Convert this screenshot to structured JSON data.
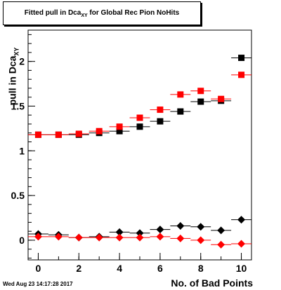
{
  "title": {
    "main": "Fitted pull in Dca",
    "sub": "XY",
    "rest": " for Global Rec Pion NoHits"
  },
  "ylabel": {
    "main": "pull in Dca",
    "sub": "XY"
  },
  "timestamp": "Wed Aug 23 14:17:28 2017",
  "chart_data": {
    "type": "scatter",
    "title": "Fitted pull in DcaXY for Global Rec Pion NoHits",
    "xlabel": "No. of Bad Points",
    "ylabel": "pull in DcaXY",
    "xlim": [
      -0.5,
      10.5
    ],
    "ylim": [
      -0.22,
      2.35
    ],
    "xticks": [
      "0",
      "2",
      "4",
      "6",
      "8",
      "10"
    ],
    "yticks": [
      "0",
      "0.5",
      "1",
      "1.5",
      "2"
    ],
    "grid": false,
    "series": [
      {
        "marker": "square",
        "color": "#000000",
        "x": [
          0,
          1,
          2,
          3,
          4,
          5,
          6,
          7,
          8,
          9,
          10
        ],
        "y": [
          1.18,
          1.18,
          1.18,
          1.2,
          1.22,
          1.27,
          1.33,
          1.44,
          1.55,
          1.56,
          2.04
        ]
      },
      {
        "marker": "square",
        "color": "#ff0000",
        "x": [
          0,
          1,
          2,
          3,
          4,
          5,
          6,
          7,
          8,
          9,
          10
        ],
        "y": [
          1.18,
          1.18,
          1.19,
          1.22,
          1.27,
          1.37,
          1.46,
          1.63,
          1.67,
          1.58,
          1.85
        ]
      },
      {
        "marker": "diamond",
        "color": "#000000",
        "x": [
          0,
          1,
          2,
          3,
          4,
          5,
          6,
          7,
          8,
          9,
          10
        ],
        "y": [
          0.07,
          0.06,
          0.03,
          0.04,
          0.09,
          0.08,
          0.12,
          0.16,
          0.15,
          0.11,
          0.23
        ]
      },
      {
        "marker": "diamond",
        "color": "#ff0000",
        "x": [
          0,
          1,
          2,
          3,
          4,
          5,
          6,
          7,
          8,
          9,
          10
        ],
        "y": [
          0.04,
          0.04,
          0.03,
          0.03,
          0.03,
          0.03,
          0.04,
          0.02,
          0.0,
          -0.05,
          -0.04
        ]
      }
    ]
  }
}
